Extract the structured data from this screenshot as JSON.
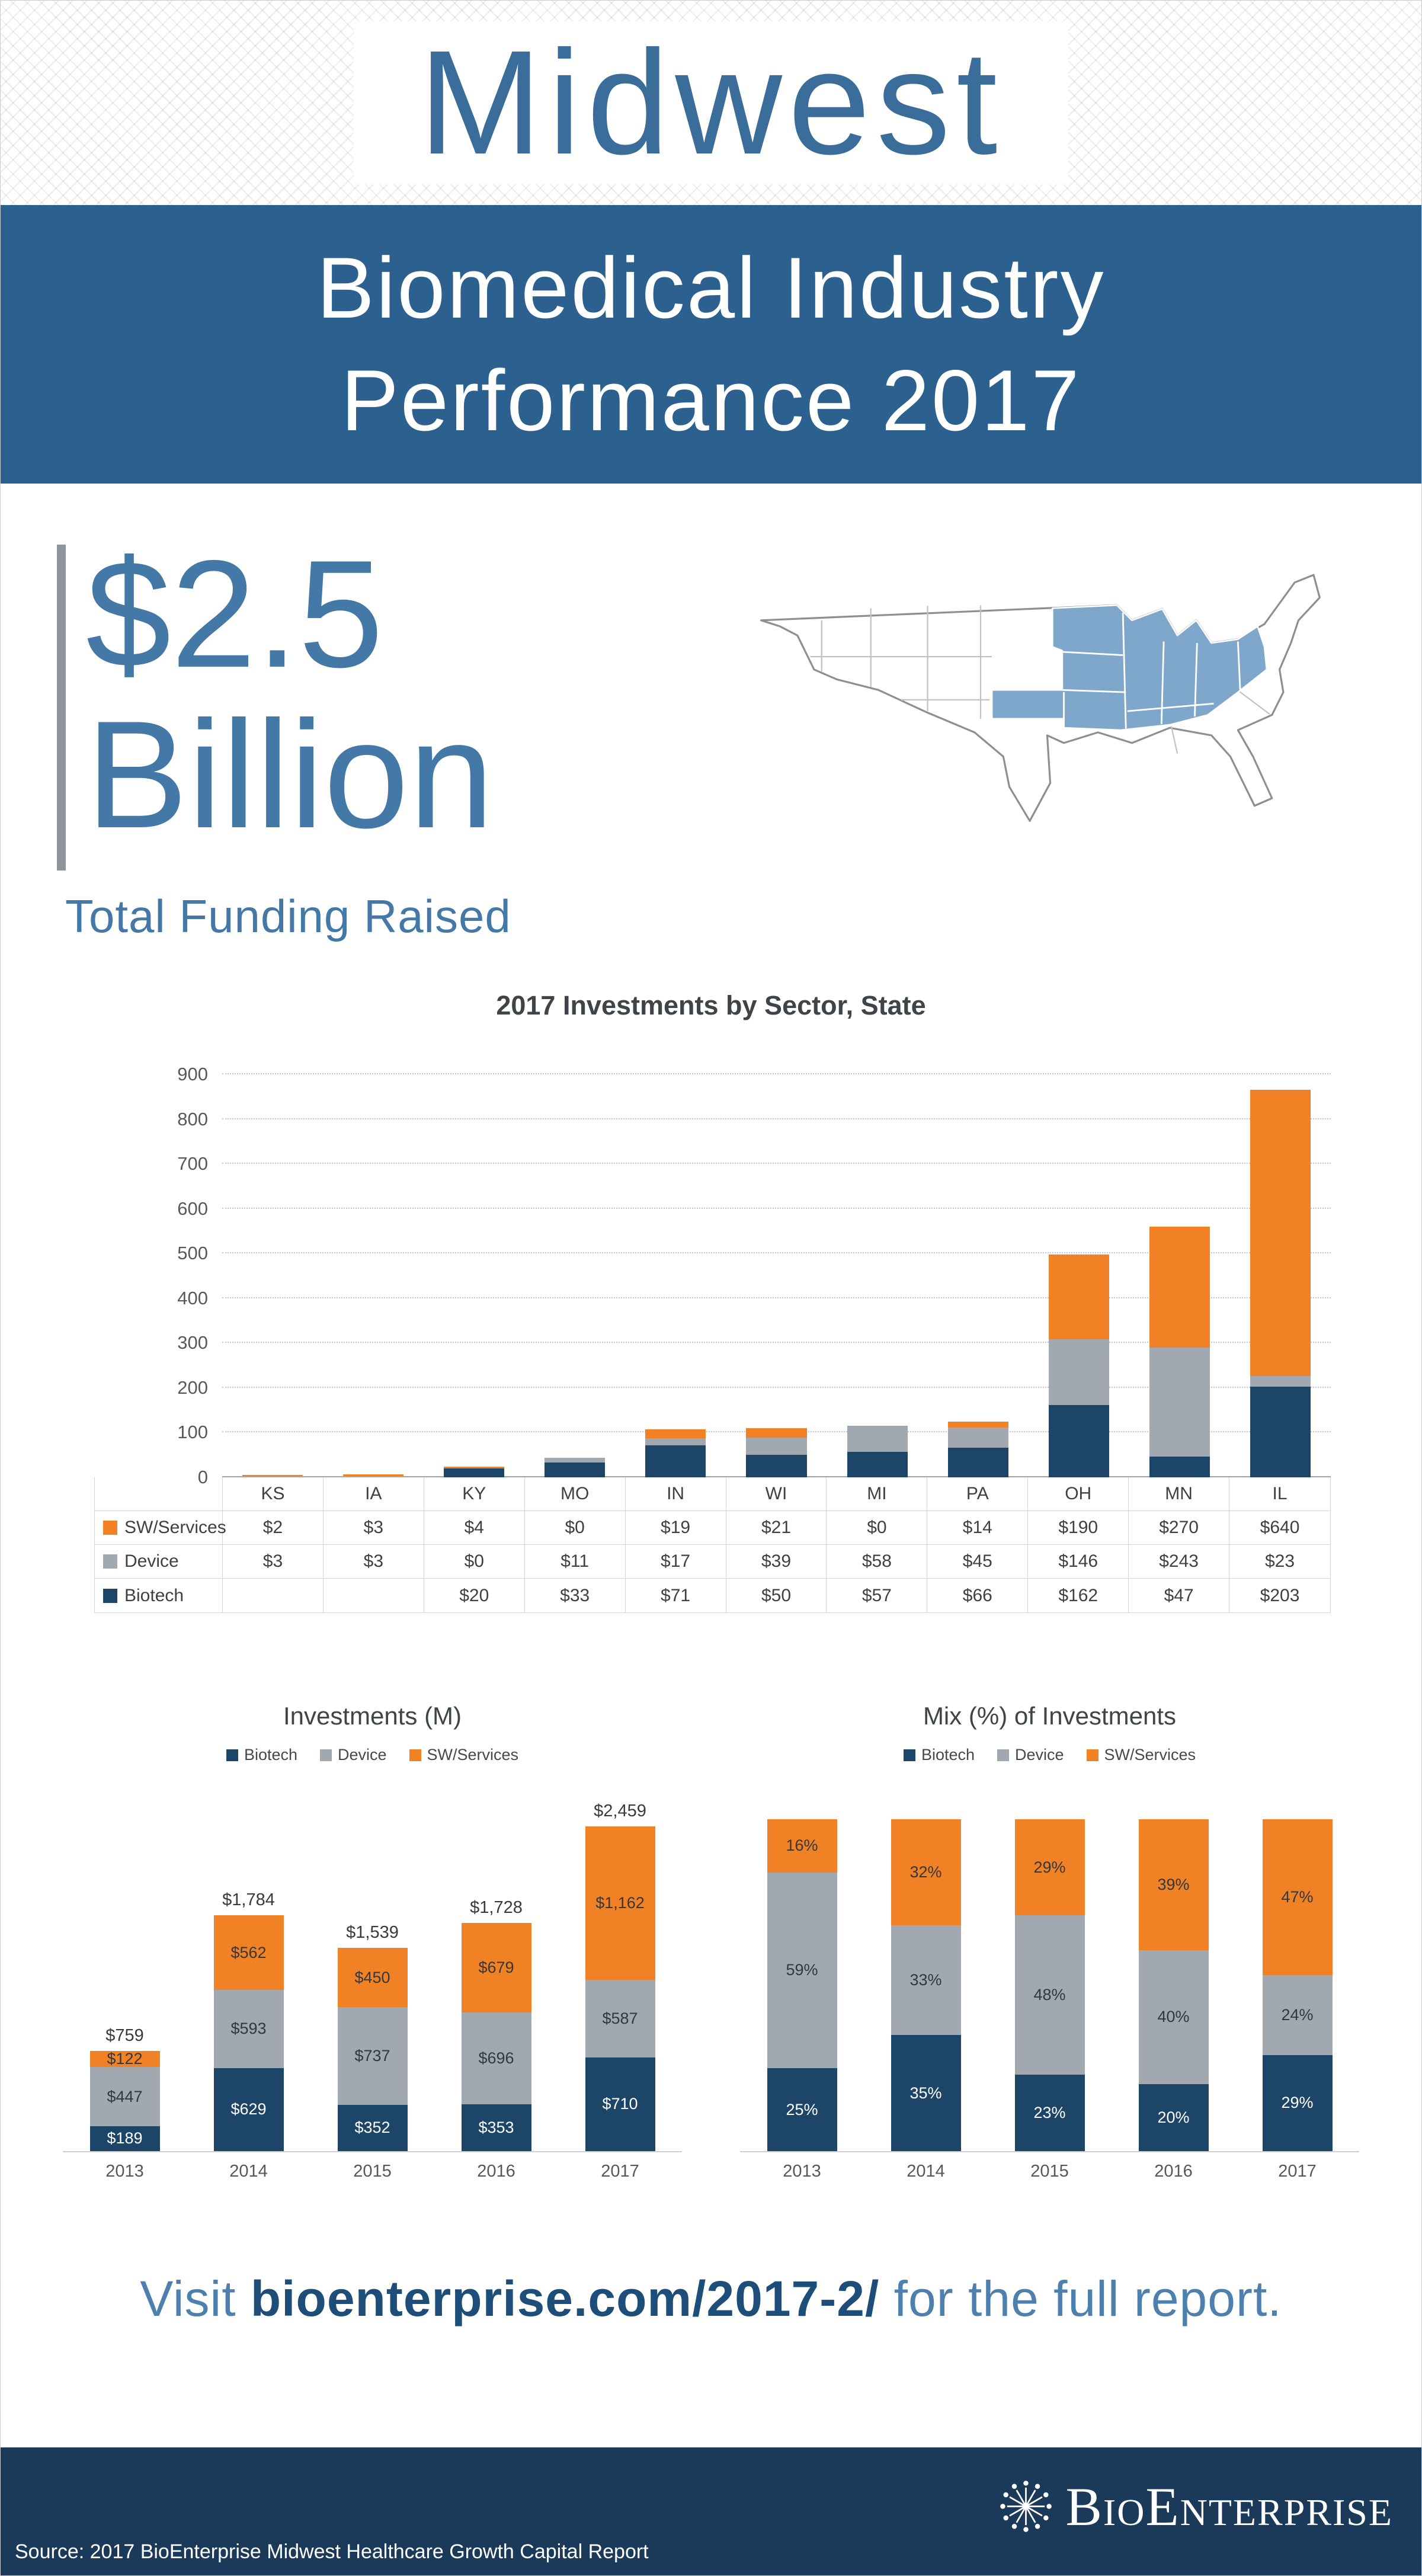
{
  "header": {
    "title": "Midwest"
  },
  "banner": {
    "line1": "Biomedical Industry",
    "line2": "Performance 2017"
  },
  "funding": {
    "amount_top": "$2.5",
    "amount_bottom": "Billion",
    "caption": "Total Funding Raised"
  },
  "colors": {
    "biotech": "#1c4568",
    "device": "#a1a8af",
    "sw_services": "#f08124",
    "banner_blue": "#2c618f",
    "accent_blue": "#4478a6",
    "footer_navy": "#1b3a5a",
    "map_highlight": "#7fa7cb"
  },
  "chart_data": [
    {
      "id": "investments-by-state",
      "type": "bar",
      "stacked": true,
      "title": "2017 Investments by Sector, State",
      "categories": [
        "KS",
        "IA",
        "KY",
        "MO",
        "IN",
        "WI",
        "MI",
        "PA",
        "OH",
        "MN",
        "IL"
      ],
      "series": [
        {
          "name": "Biotech",
          "color_key": "biotech",
          "values": [
            0,
            0,
            20,
            33,
            71,
            50,
            57,
            66,
            162,
            47,
            203
          ]
        },
        {
          "name": "Device",
          "color_key": "device",
          "values": [
            3,
            3,
            0,
            11,
            17,
            39,
            58,
            45,
            146,
            243,
            23
          ]
        },
        {
          "name": "SW/Services",
          "color_key": "sw_services",
          "values": [
            2,
            3,
            4,
            0,
            19,
            21,
            0,
            14,
            190,
            270,
            640
          ]
        }
      ],
      "ylim": [
        0,
        900
      ],
      "ytick_interval": 100,
      "grid": "dotted horizontal",
      "legend_position": "table-rows"
    },
    {
      "id": "investments-by-year",
      "type": "bar",
      "stacked": true,
      "title": "Investments (M)",
      "categories": [
        "2013",
        "2014",
        "2015",
        "2016",
        "2017"
      ],
      "series": [
        {
          "name": "Biotech",
          "color_key": "biotech",
          "values": [
            189,
            629,
            352,
            353,
            710
          ],
          "labels": [
            "$189",
            "$629",
            "$352",
            "$353",
            "$710"
          ]
        },
        {
          "name": "Device",
          "color_key": "device",
          "values": [
            447,
            593,
            737,
            696,
            587
          ],
          "labels": [
            "$447",
            "$593",
            "$737",
            "$696",
            "$587"
          ]
        },
        {
          "name": "SW/Services",
          "color_key": "sw_services",
          "values": [
            122,
            562,
            450,
            679,
            1162
          ],
          "labels": [
            "$122",
            "$562",
            "$450",
            "$679",
            "$1,162"
          ]
        }
      ],
      "totals": [
        "$759",
        "$1,784",
        "$1,539",
        "$1,728",
        "$2,459"
      ],
      "legend": [
        "Biotech",
        "Device",
        "SW/Services"
      ],
      "legend_position": "top"
    },
    {
      "id": "mix-by-year",
      "type": "bar",
      "stacked": true,
      "percent": true,
      "title": "Mix (%) of Investments",
      "categories": [
        "2013",
        "2014",
        "2015",
        "2016",
        "2017"
      ],
      "series": [
        {
          "name": "Biotech",
          "color_key": "biotech",
          "values": [
            25,
            35,
            23,
            20,
            29
          ],
          "labels": [
            "25%",
            "35%",
            "23%",
            "20%",
            "29%"
          ]
        },
        {
          "name": "Device",
          "color_key": "device",
          "values": [
            59,
            33,
            48,
            40,
            24
          ],
          "labels": [
            "59%",
            "33%",
            "48%",
            "40%",
            "24%"
          ]
        },
        {
          "name": "SW/Services",
          "color_key": "sw_services",
          "values": [
            16,
            32,
            29,
            39,
            47
          ],
          "labels": [
            "16%",
            "32%",
            "29%",
            "39%",
            "47%"
          ]
        }
      ],
      "legend": [
        "Biotech",
        "Device",
        "SW/Services"
      ],
      "legend_position": "top"
    }
  ],
  "state_table": {
    "rows": [
      {
        "label": "SW/Services",
        "series": "sw_services",
        "values": [
          "$2",
          "$3",
          "$4",
          "$0",
          "$19",
          "$21",
          "$0",
          "$14",
          "$190",
          "$270",
          "$640"
        ]
      },
      {
        "label": "Device",
        "series": "device",
        "values": [
          "$3",
          "$3",
          "$0",
          "$11",
          "$17",
          "$39",
          "$58",
          "$45",
          "$146",
          "$243",
          "$23"
        ]
      },
      {
        "label": "Biotech",
        "series": "biotech",
        "values": [
          "",
          "",
          "$20",
          "$33",
          "$71",
          "$50",
          "$57",
          "$66",
          "$162",
          "$47",
          "$203"
        ]
      }
    ]
  },
  "visit": {
    "prefix": "Visit ",
    "link": "bioenterprise.com/2017-2/",
    "suffix": " for the full report."
  },
  "footer": {
    "source": "Source: 2017 BioEnterprise Midwest Healthcare Growth Capital Report",
    "logo_text": "BioEnterprise"
  }
}
